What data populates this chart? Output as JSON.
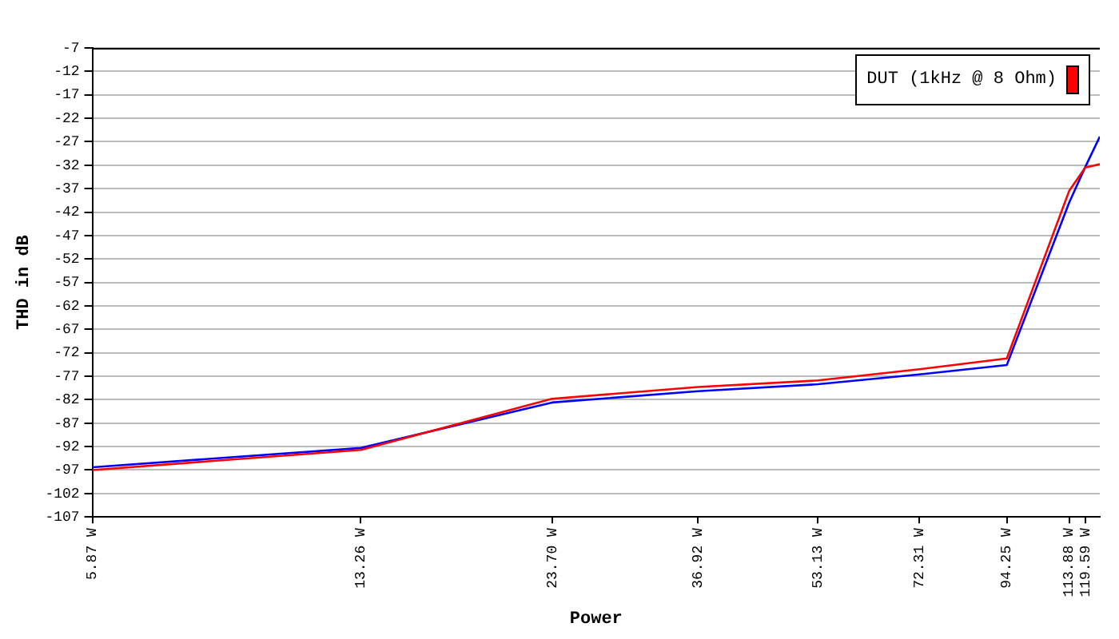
{
  "chart_data": {
    "type": "line",
    "xlabel": "Power",
    "ylabel": "THD in dB",
    "log": "x",
    "x": [
      5.87,
      13.26,
      23.7,
      36.92,
      53.13,
      72.31,
      94.25,
      113.88,
      119.59,
      125
    ],
    "series": [
      {
        "name": "DUT (1kHz @ 8 Ohm)",
        "color": "#ff0000",
        "values": [
          -97,
          -92.7,
          -81.8,
          -79.3,
          -77.9,
          -75.5,
          -73.2,
          -37.5,
          -32.5,
          -31.8
        ]
      },
      {
        "color": "#0000ff",
        "values": [
          -96.4,
          -92.3,
          -82.6,
          -80.2,
          -78.7,
          -76.6,
          -74.6,
          -40,
          -32.4,
          -25.9
        ]
      }
    ],
    "xlim": [
      5.87,
      125
    ],
    "xticks": [
      {
        "value": 5.87,
        "label": "5.87 W"
      },
      {
        "value": 13.26,
        "label": "13.26 W"
      },
      {
        "value": 23.7,
        "label": "23.70 W"
      },
      {
        "value": 36.92,
        "label": "36.92 W"
      },
      {
        "value": 53.13,
        "label": "53.13 W"
      },
      {
        "value": 72.31,
        "label": "72.31 W"
      },
      {
        "value": 94.25,
        "label": "94.25 W"
      },
      {
        "value": 113.88,
        "label": "113.88 W"
      },
      {
        "value": 119.59,
        "label": "119.59 W"
      }
    ],
    "ylim": [
      -107,
      -7
    ],
    "yticks": [
      -107,
      -102,
      -97,
      -92,
      -87,
      -82,
      -77,
      -72,
      -67,
      -62,
      -57,
      -52,
      -47,
      -42,
      -37,
      -32,
      -27,
      -22,
      -17,
      -12,
      -7
    ],
    "grid": "y",
    "legend": "top right",
    "marker": "none",
    "line_style": "solid"
  }
}
